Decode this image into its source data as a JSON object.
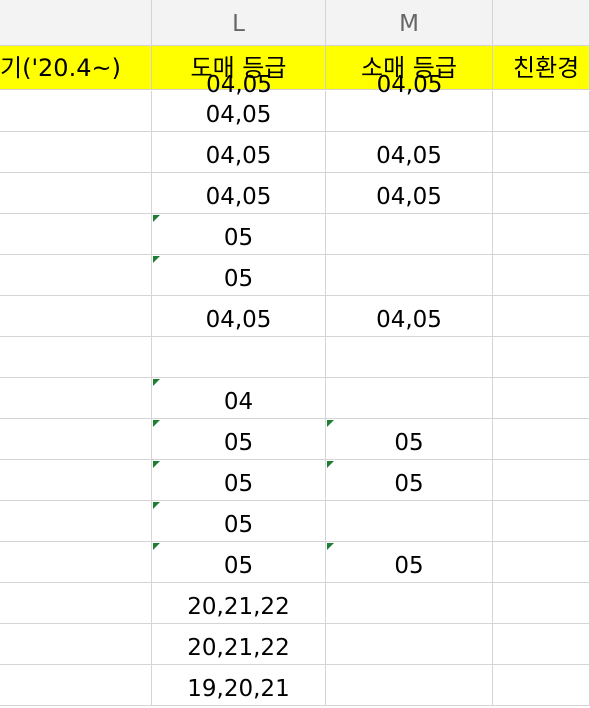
{
  "column_headers": [
    "",
    "L",
    "M",
    ""
  ],
  "header_row": {
    "col_k": "기('20.4~)",
    "col_l": "도매 등급",
    "col_m": "소매 등급",
    "col_n": "친환경"
  },
  "cut_row": {
    "l": "04,05",
    "m": "04,05"
  },
  "rows": [
    {
      "l": "04,05",
      "m": "",
      "l_flag": false,
      "m_flag": false
    },
    {
      "l": "04,05",
      "m": "04,05",
      "l_flag": false,
      "m_flag": false
    },
    {
      "l": "04,05",
      "m": "04,05",
      "l_flag": false,
      "m_flag": false
    },
    {
      "l": "05",
      "m": "",
      "l_flag": true,
      "m_flag": false
    },
    {
      "l": "05",
      "m": "",
      "l_flag": true,
      "m_flag": false
    },
    {
      "l": "04,05",
      "m": "04,05",
      "l_flag": false,
      "m_flag": false
    },
    {
      "l": "",
      "m": "",
      "l_flag": false,
      "m_flag": false
    },
    {
      "l": "04",
      "m": "",
      "l_flag": true,
      "m_flag": false
    },
    {
      "l": "05",
      "m": "05",
      "l_flag": true,
      "m_flag": true
    },
    {
      "l": "05",
      "m": "05",
      "l_flag": true,
      "m_flag": true
    },
    {
      "l": "05",
      "m": "",
      "l_flag": true,
      "m_flag": false
    },
    {
      "l": "05",
      "m": "05",
      "l_flag": true,
      "m_flag": true
    },
    {
      "l": "20,21,22",
      "m": "",
      "l_flag": false,
      "m_flag": false
    },
    {
      "l": "20,21,22",
      "m": "",
      "l_flag": false,
      "m_flag": false
    },
    {
      "l": "19,20,21",
      "m": "",
      "l_flag": false,
      "m_flag": false
    }
  ],
  "colors": {
    "header_fill": "#ffff00",
    "grid": "#d4d4d4",
    "flag": "#1e7e34"
  }
}
